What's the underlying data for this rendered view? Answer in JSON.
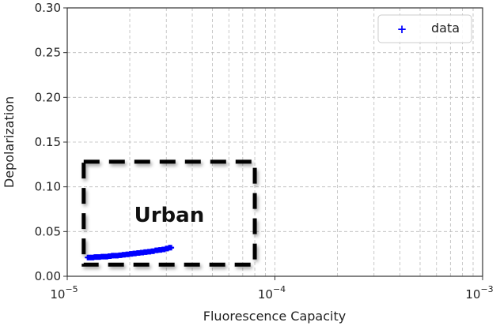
{
  "chart_data": {
    "type": "scatter",
    "xlabel": "Fluorescence Capacity",
    "ylabel": "Depolarization",
    "xscale": "log",
    "xlim": [
      1e-05,
      0.001
    ],
    "ylim": [
      0,
      0.3
    ],
    "grid": true,
    "legend_placement": "top-right",
    "x_tick_labels": [
      {
        "base": "10",
        "exp": "−5",
        "value": 1e-05
      },
      {
        "base": "10",
        "exp": "−4",
        "value": 0.0001
      },
      {
        "base": "10",
        "exp": "−3",
        "value": 0.001
      }
    ],
    "y_ticks": [
      0,
      0.05,
      0.1,
      0.15,
      0.2,
      0.25,
      0.3
    ],
    "y_tick_labels": [
      "0.00",
      "0.05",
      "0.10",
      "0.15",
      "0.20",
      "0.25",
      "0.30"
    ],
    "series": [
      {
        "name": "data",
        "marker": "+",
        "color": "#0000ff",
        "x": [
          1.27e-05,
          1.32e-05,
          1.37e-05,
          1.42e-05,
          1.48e-05,
          1.54e-05,
          1.6e-05,
          1.66e-05,
          1.73e-05,
          1.8e-05,
          1.87e-05,
          1.95e-05,
          2.03e-05,
          2.11e-05,
          2.2e-05,
          2.29e-05,
          2.38e-05,
          2.48e-05,
          2.58e-05,
          2.69e-05,
          2.8e-05,
          2.91e-05,
          3.02e-05,
          3.13e-05
        ],
        "y": [
          0.021,
          0.021,
          0.0215,
          0.0215,
          0.022,
          0.022,
          0.0225,
          0.023,
          0.023,
          0.0235,
          0.024,
          0.0245,
          0.025,
          0.0255,
          0.026,
          0.0265,
          0.027,
          0.0275,
          0.028,
          0.029,
          0.0295,
          0.03,
          0.031,
          0.032
        ]
      }
    ],
    "annotations": [
      {
        "text": "Urban",
        "style": "bold, inside dashed black box",
        "box_x": [
          1.2e-05,
          8e-05
        ],
        "box_y": [
          0.013,
          0.128
        ]
      }
    ]
  }
}
